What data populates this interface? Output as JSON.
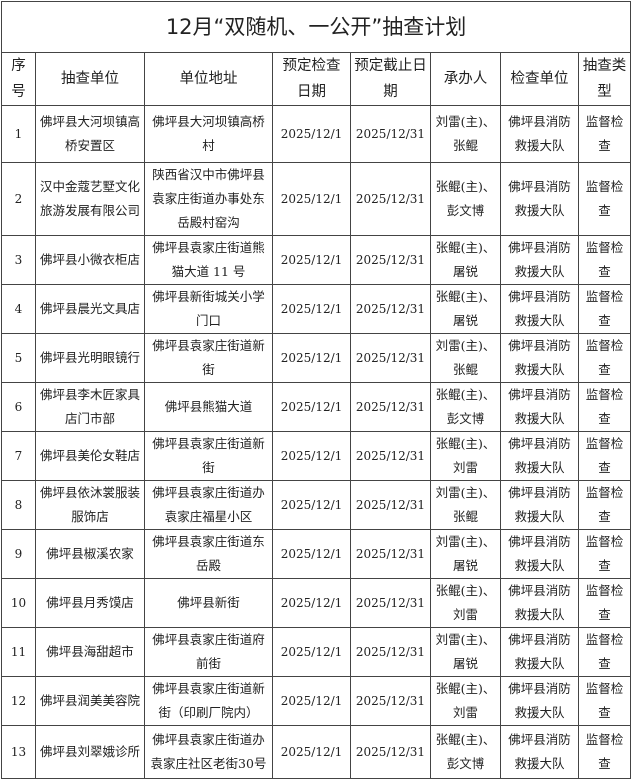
{
  "title": "12月“双随机、一公开”抽查计划",
  "headers": [
    "序号",
    "抽查单位",
    "单位地址",
    "预定检查日期",
    "预定截止日期",
    "承办人",
    "检查单位",
    "抽查类型"
  ],
  "rows": [
    [
      "1",
      "佛坪县大河坝镇高桥安置区",
      "佛坪县大河坝镇高桥村",
      "2025/12/1",
      "2025/12/31",
      "刘雷(主)、张鲲",
      "佛坪县消防救援大队",
      "监督检查"
    ],
    [
      "2",
      "汉中金蔻艺墅文化旅游发展有限公司",
      "陕西省汉中市佛坪县袁家庄街道办事处东岳殿村窑沟",
      "2025/12/1",
      "2025/12/31",
      "张鲲(主)、彭文博",
      "佛坪县消防救援大队",
      "监督检查"
    ],
    [
      "3",
      "佛坪县小微衣柜店",
      "佛坪县袁家庄街道熊猫大道 11 号",
      "2025/12/1",
      "2025/12/31",
      "张鲲(主)、屠锐",
      "佛坪县消防救援大队",
      "监督检查"
    ],
    [
      "4",
      "佛坪县晨光文具店",
      "佛坪县新街城关小学门口",
      "2025/12/1",
      "2025/12/31",
      "张鲲(主)、屠锐",
      "佛坪县消防救援大队",
      "监督检查"
    ],
    [
      "5",
      "佛坪县光明眼镜行",
      "佛坪县袁家庄街道新街",
      "2025/12/1",
      "2025/12/31",
      "刘雷(主)、张鲲",
      "佛坪县消防救援大队",
      "监督检查"
    ],
    [
      "6",
      "佛坪县李木匠家具店门市部",
      "佛坪县熊猫大道",
      "2025/12/1",
      "2025/12/31",
      "张鲲(主)、彭文博",
      "佛坪县消防救援大队",
      "监督检查"
    ],
    [
      "7",
      "佛坪县美伦女鞋店",
      "佛坪县袁家庄街道新街",
      "2025/12/1",
      "2025/12/31",
      "张鲲(主)、刘雷",
      "佛坪县消防救援大队",
      "监督检查"
    ],
    [
      "8",
      "佛坪县依沐裳服装服饰店",
      "佛坪县袁家庄街道办袁家庄福星小区",
      "2025/12/1",
      "2025/12/31",
      "刘雷(主)、张鲲",
      "佛坪县消防救援大队",
      "监督检查"
    ],
    [
      "9",
      "佛坪县椒溪农家",
      "佛坪县袁家庄街道东岳殿",
      "2025/12/1",
      "2025/12/31",
      "刘雷(主)、屠锐",
      "佛坪县消防救援大队",
      "监督检查"
    ],
    [
      "10",
      "佛坪县月秀馍店",
      "佛坪县新街",
      "2025/12/1",
      "2025/12/31",
      "张鲲(主)、刘雷",
      "佛坪县消防救援大队",
      "监督检查"
    ],
    [
      "11",
      "佛坪县海甜超市",
      "佛坪县袁家庄街道府前街",
      "2025/12/1",
      "2025/12/31",
      "刘雷(主)、屠锐",
      "佛坪县消防救援大队",
      "监督检查"
    ],
    [
      "12",
      "佛坪县润美美容院",
      "佛坪县袁家庄街道新街（印刷厂院内）",
      "2025/12/1",
      "2025/12/31",
      "张鲲(主)、刘雷",
      "佛坪县消防救援大队",
      "监督检查"
    ],
    [
      "13",
      "佛坪县刘翠娥诊所",
      "佛坪县袁家庄街道办袁家庄社区老街30号",
      "2025/12/1",
      "2025/12/31",
      "张鲲(主)、彭文博",
      "佛坪县消防救援大队",
      "监督检查"
    ]
  ]
}
